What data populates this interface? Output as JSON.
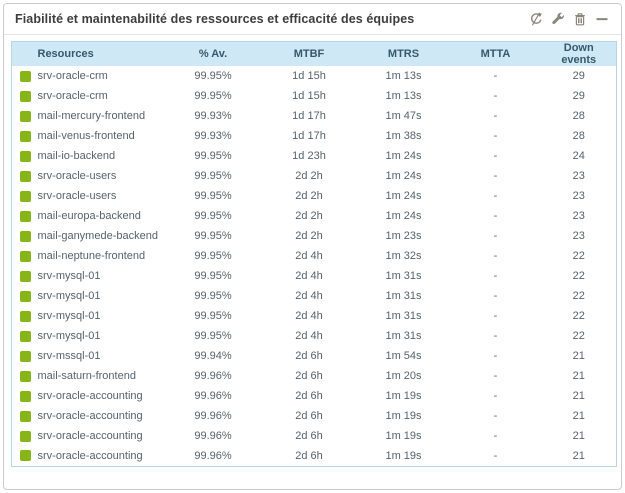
{
  "widget": {
    "title": "Fiabilité et maintenabilité des ressources et efficacité des équipes",
    "actions": [
      {
        "label": "refresh",
        "icon": "refresh-icon"
      },
      {
        "label": "configure",
        "icon": "wrench-icon"
      },
      {
        "label": "delete",
        "icon": "trash-icon"
      },
      {
        "label": "collapse",
        "icon": "minus-icon"
      }
    ]
  },
  "table": {
    "columns": [
      "Resources",
      "% Av.",
      "MTBF",
      "MTRS",
      "MTTA",
      "Down events"
    ],
    "rows": [
      {
        "status": "up",
        "resource": "srv-oracle-crm",
        "availability": "99.95%",
        "mtbf": "1d 15h",
        "mtrs": "1m 13s",
        "mtta": "-",
        "down_events": "29"
      },
      {
        "status": "up",
        "resource": "srv-oracle-crm",
        "availability": "99.95%",
        "mtbf": "1d 15h",
        "mtrs": "1m 13s",
        "mtta": "-",
        "down_events": "29"
      },
      {
        "status": "up",
        "resource": "mail-mercury-frontend",
        "availability": "99.93%",
        "mtbf": "1d 17h",
        "mtrs": "1m 47s",
        "mtta": "-",
        "down_events": "28"
      },
      {
        "status": "up",
        "resource": "mail-venus-frontend",
        "availability": "99.93%",
        "mtbf": "1d 17h",
        "mtrs": "1m 38s",
        "mtta": "-",
        "down_events": "28"
      },
      {
        "status": "up",
        "resource": "mail-io-backend",
        "availability": "99.95%",
        "mtbf": "1d 23h",
        "mtrs": "1m 24s",
        "mtta": "-",
        "down_events": "24"
      },
      {
        "status": "up",
        "resource": "srv-oracle-users",
        "availability": "99.95%",
        "mtbf": "2d 2h",
        "mtrs": "1m 24s",
        "mtta": "-",
        "down_events": "23"
      },
      {
        "status": "up",
        "resource": "srv-oracle-users",
        "availability": "99.95%",
        "mtbf": "2d 2h",
        "mtrs": "1m 24s",
        "mtta": "-",
        "down_events": "23"
      },
      {
        "status": "up",
        "resource": "mail-europa-backend",
        "availability": "99.95%",
        "mtbf": "2d 2h",
        "mtrs": "1m 24s",
        "mtta": "-",
        "down_events": "23"
      },
      {
        "status": "up",
        "resource": "mail-ganymede-backend",
        "availability": "99.95%",
        "mtbf": "2d 2h",
        "mtrs": "1m 23s",
        "mtta": "-",
        "down_events": "23"
      },
      {
        "status": "up",
        "resource": "mail-neptune-frontend",
        "availability": "99.95%",
        "mtbf": "2d 4h",
        "mtrs": "1m 32s",
        "mtta": "-",
        "down_events": "22"
      },
      {
        "status": "up",
        "resource": "srv-mysql-01",
        "availability": "99.95%",
        "mtbf": "2d 4h",
        "mtrs": "1m 31s",
        "mtta": "-",
        "down_events": "22"
      },
      {
        "status": "up",
        "resource": "srv-mysql-01",
        "availability": "99.95%",
        "mtbf": "2d 4h",
        "mtrs": "1m 31s",
        "mtta": "-",
        "down_events": "22"
      },
      {
        "status": "up",
        "resource": "srv-mysql-01",
        "availability": "99.95%",
        "mtbf": "2d 4h",
        "mtrs": "1m 31s",
        "mtta": "-",
        "down_events": "22"
      },
      {
        "status": "up",
        "resource": "srv-mysql-01",
        "availability": "99.95%",
        "mtbf": "2d 4h",
        "mtrs": "1m 31s",
        "mtta": "-",
        "down_events": "22"
      },
      {
        "status": "up",
        "resource": "srv-mssql-01",
        "availability": "99.94%",
        "mtbf": "2d 6h",
        "mtrs": "1m 54s",
        "mtta": "-",
        "down_events": "21"
      },
      {
        "status": "up",
        "resource": "mail-saturn-frontend",
        "availability": "99.96%",
        "mtbf": "2d 6h",
        "mtrs": "1m 20s",
        "mtta": "-",
        "down_events": "21"
      },
      {
        "status": "up",
        "resource": "srv-oracle-accounting",
        "availability": "99.96%",
        "mtbf": "2d 6h",
        "mtrs": "1m 19s",
        "mtta": "-",
        "down_events": "21"
      },
      {
        "status": "up",
        "resource": "srv-oracle-accounting",
        "availability": "99.96%",
        "mtbf": "2d 6h",
        "mtrs": "1m 19s",
        "mtta": "-",
        "down_events": "21"
      },
      {
        "status": "up",
        "resource": "srv-oracle-accounting",
        "availability": "99.96%",
        "mtbf": "2d 6h",
        "mtrs": "1m 19s",
        "mtta": "-",
        "down_events": "21"
      },
      {
        "status": "up",
        "resource": "srv-oracle-accounting",
        "availability": "99.96%",
        "mtbf": "2d 6h",
        "mtrs": "1m 19s",
        "mtta": "-",
        "down_events": "21"
      }
    ]
  },
  "colors": {
    "status_up": "#87b517",
    "table_header_bg": "#cfe8f5",
    "table_header_text": "#34596c",
    "table_border": "#b9d5e2",
    "body_text": "#56626b",
    "icon": "#8b857c",
    "widget_border": "#cbcbcb"
  }
}
